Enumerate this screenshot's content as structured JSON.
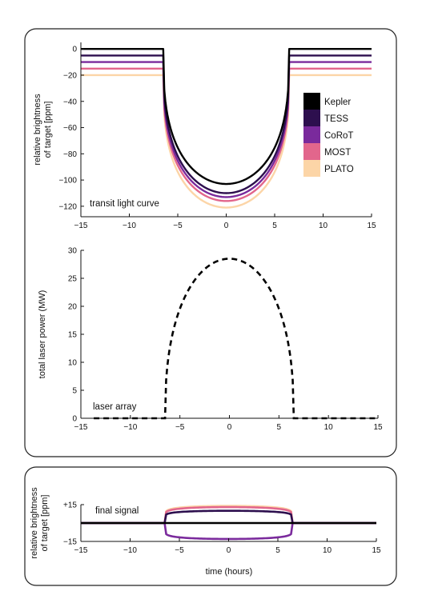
{
  "chart_data": [
    {
      "type": "line",
      "ylabel": [
        "relative brightness",
        "of target [ppm]"
      ],
      "xlim": [
        -15,
        15
      ],
      "ylim": [
        -128,
        5
      ],
      "xticks": [
        "−15",
        "−10",
        "−5",
        "0",
        "5",
        "10",
        "15"
      ],
      "yticks": [
        "0",
        "−20",
        "−40",
        "−60",
        "−80",
        "−100",
        "−120"
      ],
      "annotation": "transit light curve",
      "legend_position": "right",
      "transit": {
        "ingress": -6.5,
        "egress": 6.5
      },
      "series": [
        {
          "name": "Kepler",
          "color": "#000000",
          "baseline": 0,
          "depth": -103
        },
        {
          "name": "TESS",
          "color": "#2d0f4e",
          "baseline": -5,
          "depth": -110
        },
        {
          "name": "CoRoT",
          "color": "#7a2a9c",
          "baseline": -10,
          "depth": -113
        },
        {
          "name": "MOST",
          "color": "#e2668c",
          "baseline": -15,
          "depth": -116
        },
        {
          "name": "PLATO",
          "color": "#fcd5a7",
          "baseline": -20,
          "depth": -121
        }
      ]
    },
    {
      "type": "line",
      "ylabel": "total laser power (MW)",
      "xlim": [
        -15,
        15
      ],
      "ylim": [
        0,
        30
      ],
      "xticks": [
        "−15",
        "−10",
        "−5",
        "0",
        "5",
        "10",
        "15"
      ],
      "yticks": [
        "30",
        "25",
        "20",
        "15",
        "10",
        "5",
        "0"
      ],
      "annotation": "laser array",
      "series": [
        {
          "style": "dashed",
          "color": "#000000",
          "baseline": 0,
          "peak": 28.5,
          "on": -6.5,
          "off": 6.5
        }
      ]
    },
    {
      "type": "line",
      "ylabel": [
        "relative brightness",
        "of target [ppm]"
      ],
      "xlabel": "time (hours)",
      "xlim": [
        -15,
        15
      ],
      "ylim": [
        -15,
        15
      ],
      "xticks": [
        "−15",
        "−10",
        "−5",
        "0",
        "5",
        "10",
        "15"
      ],
      "yticks": [
        "+15",
        "−15"
      ],
      "annotation": "final signal",
      "series": [
        {
          "color": "#fcd5a7",
          "in_transit": 14
        },
        {
          "color": "#e2668c",
          "in_transit": 13
        },
        {
          "color": "#2d0f4e",
          "in_transit": 10
        },
        {
          "color": "#7a2a9c",
          "in_transit": -13
        },
        {
          "color": "#000000",
          "in_transit": 0
        }
      ]
    }
  ]
}
